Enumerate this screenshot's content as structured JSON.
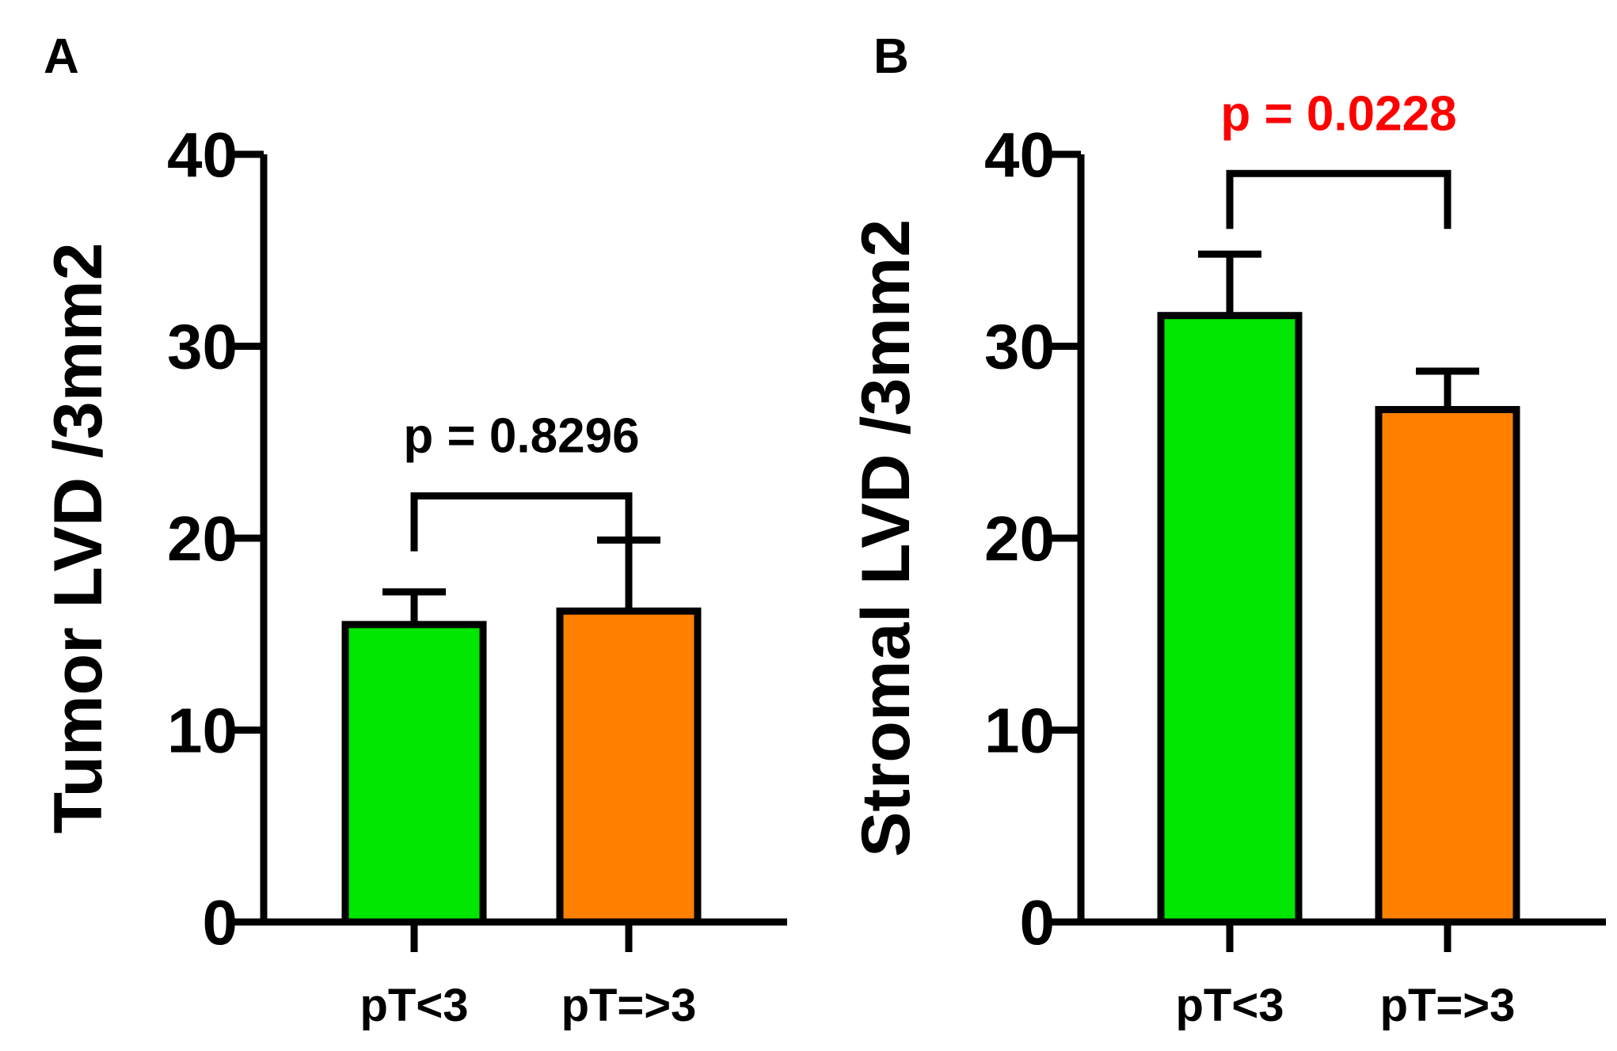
{
  "chart_data": [
    {
      "type": "bar",
      "panel_label": "A",
      "ylabel": "Tumor LVD /3mm2",
      "ylim": [
        0,
        40
      ],
      "yticks": [
        "0",
        "10",
        "20",
        "30",
        "40"
      ],
      "categories": [
        "pT<3",
        "pT=>3"
      ],
      "values": [
        15.5,
        16.2
      ],
      "error_upper": [
        17.2,
        19.9
      ],
      "colors": [
        "#00e600",
        "#ff8000"
      ],
      "significance": {
        "text": "p = 0.8296",
        "color": "#000000",
        "between": [
          0,
          1
        ],
        "bracket_y": 22.2
      }
    },
    {
      "type": "bar",
      "panel_label": "B",
      "ylabel": "Stromal LVD /3mm2",
      "ylim": [
        0,
        40
      ],
      "yticks": [
        "0",
        "10",
        "20",
        "30",
        "40"
      ],
      "categories": [
        "pT<3",
        "pT=>3"
      ],
      "values": [
        31.6,
        26.7
      ],
      "error_upper": [
        34.8,
        28.7
      ],
      "colors": [
        "#00e600",
        "#ff8000"
      ],
      "significance": {
        "text": "p = 0.0228",
        "color": "#ff0000",
        "between": [
          0,
          1
        ],
        "bracket_y": 39.0
      }
    }
  ]
}
